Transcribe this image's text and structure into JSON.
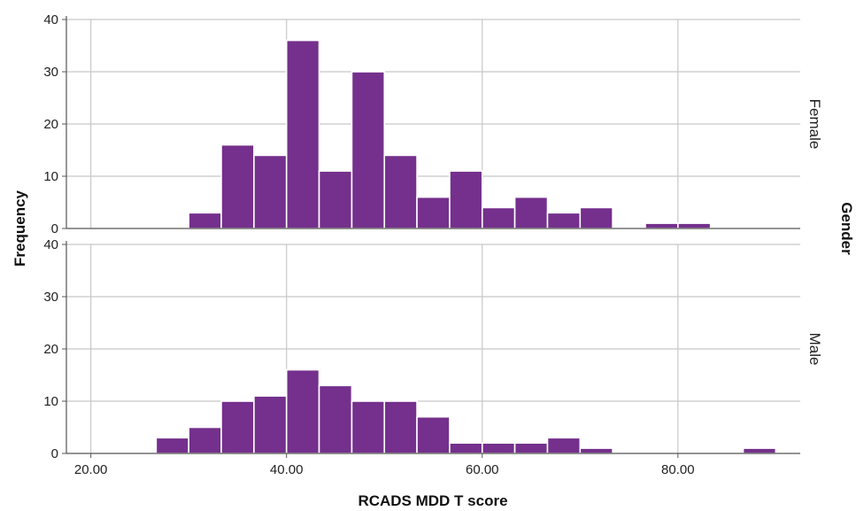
{
  "chart_data": {
    "type": "bar",
    "subtype": "histogram-faceted",
    "xlabel": "RCADS MDD T score",
    "ylabel": "Frequency",
    "facet_label": "Gender",
    "xlim": [
      17.5,
      92.5
    ],
    "ylim": [
      0,
      40
    ],
    "x_ticks": [
      20,
      40,
      60,
      80
    ],
    "x_tick_labels": [
      "20.00",
      "40.00",
      "60.00",
      "80.00"
    ],
    "y_ticks": [
      0,
      10,
      20,
      30,
      40
    ],
    "y_tick_labels": [
      "0",
      "10",
      "20",
      "30",
      "40"
    ],
    "grid": true,
    "bar_color": "#74308c",
    "bin_width": 3.33,
    "panels": [
      {
        "name": "Female",
        "bins": [
          {
            "start": 30.0,
            "end": 33.33,
            "count": 3
          },
          {
            "start": 33.33,
            "end": 36.67,
            "count": 16
          },
          {
            "start": 36.67,
            "end": 40.0,
            "count": 14
          },
          {
            "start": 40.0,
            "end": 43.33,
            "count": 36
          },
          {
            "start": 43.33,
            "end": 46.67,
            "count": 11
          },
          {
            "start": 46.67,
            "end": 50.0,
            "count": 30
          },
          {
            "start": 50.0,
            "end": 53.33,
            "count": 14
          },
          {
            "start": 53.33,
            "end": 56.67,
            "count": 6
          },
          {
            "start": 56.67,
            "end": 60.0,
            "count": 11
          },
          {
            "start": 60.0,
            "end": 63.33,
            "count": 4
          },
          {
            "start": 63.33,
            "end": 66.67,
            "count": 6
          },
          {
            "start": 66.67,
            "end": 70.0,
            "count": 3
          },
          {
            "start": 70.0,
            "end": 73.33,
            "count": 4
          },
          {
            "start": 76.67,
            "end": 80.0,
            "count": 1
          },
          {
            "start": 80.0,
            "end": 83.33,
            "count": 1
          }
        ]
      },
      {
        "name": "Male",
        "bins": [
          {
            "start": 26.67,
            "end": 30.0,
            "count": 3
          },
          {
            "start": 30.0,
            "end": 33.33,
            "count": 5
          },
          {
            "start": 33.33,
            "end": 36.67,
            "count": 10
          },
          {
            "start": 36.67,
            "end": 40.0,
            "count": 11
          },
          {
            "start": 40.0,
            "end": 43.33,
            "count": 16
          },
          {
            "start": 43.33,
            "end": 46.67,
            "count": 13
          },
          {
            "start": 46.67,
            "end": 50.0,
            "count": 10
          },
          {
            "start": 50.0,
            "end": 53.33,
            "count": 10
          },
          {
            "start": 53.33,
            "end": 56.67,
            "count": 7
          },
          {
            "start": 56.67,
            "end": 60.0,
            "count": 2
          },
          {
            "start": 60.0,
            "end": 63.33,
            "count": 2
          },
          {
            "start": 63.33,
            "end": 66.67,
            "count": 2
          },
          {
            "start": 66.67,
            "end": 70.0,
            "count": 3
          },
          {
            "start": 70.0,
            "end": 73.33,
            "count": 1
          },
          {
            "start": 86.67,
            "end": 90.0,
            "count": 1
          }
        ]
      }
    ]
  }
}
